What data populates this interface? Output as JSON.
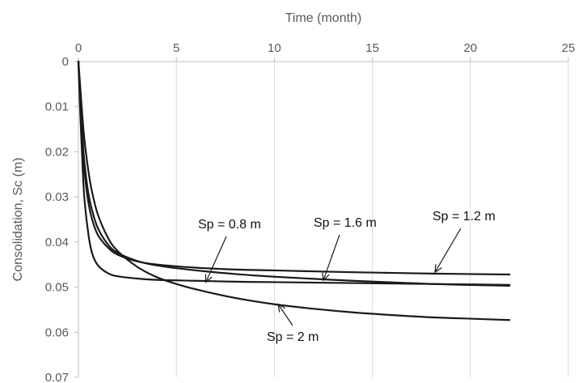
{
  "chart_data": {
    "type": "line",
    "xlabel": "Time (month)",
    "ylabel": "Consolidation, Sc (m)",
    "x_axis_position": "top",
    "y_axis_inverted": true,
    "xlim": [
      0,
      25
    ],
    "ylim": [
      0,
      0.07
    ],
    "x_ticks": [
      0,
      5,
      10,
      15,
      20,
      25
    ],
    "x_tick_labels": [
      "0",
      "5",
      "10",
      "15",
      "20",
      "25"
    ],
    "y_ticks": [
      0,
      0.01,
      0.02,
      0.03,
      0.04,
      0.05,
      0.06,
      0.07
    ],
    "y_tick_labels": [
      "0",
      "0.01",
      "0.02",
      "0.03",
      "0.04",
      "0.05",
      "0.06",
      "0.07"
    ],
    "grid": {
      "vertical": true,
      "horizontal": false
    },
    "legend": "none",
    "line_color": "#1a1a1a",
    "grid_color": "#d9d9d9",
    "series": [
      {
        "name": "Sp = 0.8 m",
        "x": [
          0,
          0.05,
          0.1,
          0.2,
          0.3,
          0.5,
          0.7,
          1.0,
          1.5,
          2,
          3,
          4,
          6,
          8,
          10,
          14,
          18,
          22
        ],
        "y": [
          0,
          0.006,
          0.012,
          0.022,
          0.03,
          0.038,
          0.0425,
          0.0452,
          0.0469,
          0.0476,
          0.0481,
          0.0484,
          0.0486,
          0.0488,
          0.0489,
          0.0491,
          0.0493,
          0.0495
        ]
      },
      {
        "name": "Sp = 1.2 m",
        "x": [
          0,
          0.05,
          0.1,
          0.2,
          0.3,
          0.5,
          0.7,
          1.0,
          1.5,
          2,
          3,
          4,
          6,
          8,
          10,
          14,
          18,
          22
        ],
        "y": [
          0,
          0.005,
          0.01,
          0.018,
          0.024,
          0.031,
          0.035,
          0.0385,
          0.0412,
          0.0428,
          0.0443,
          0.045,
          0.0457,
          0.0461,
          0.0463,
          0.0467,
          0.047,
          0.0472
        ]
      },
      {
        "name": "Sp = 1.6 m",
        "x": [
          0,
          0.05,
          0.1,
          0.2,
          0.3,
          0.5,
          0.7,
          1.0,
          1.5,
          2,
          3,
          4,
          6,
          8,
          10,
          14,
          18,
          22
        ],
        "y": [
          0,
          0.004,
          0.009,
          0.016,
          0.022,
          0.029,
          0.033,
          0.037,
          0.0405,
          0.0424,
          0.0442,
          0.0452,
          0.0463,
          0.0471,
          0.0477,
          0.0486,
          0.0493,
          0.0497
        ]
      },
      {
        "name": "Sp = 2 m",
        "x": [
          0,
          0.05,
          0.1,
          0.2,
          0.3,
          0.5,
          0.7,
          1.0,
          1.5,
          2,
          3,
          4,
          5,
          6,
          8,
          10,
          12,
          14,
          16,
          18,
          20,
          22
        ],
        "y": [
          0,
          0.003,
          0.006,
          0.012,
          0.017,
          0.024,
          0.029,
          0.034,
          0.039,
          0.042,
          0.0455,
          0.0478,
          0.0493,
          0.0505,
          0.0524,
          0.0538,
          0.0548,
          0.0556,
          0.0562,
          0.0567,
          0.057,
          0.0573
        ]
      }
    ],
    "annotations": [
      {
        "text": "Sp = 0.8 m",
        "points_to": {
          "x": 6.5,
          "y": 0.0489
        }
      },
      {
        "text": "Sp = 1.6 m",
        "points_to": {
          "x": 12.5,
          "y": 0.0485
        }
      },
      {
        "text": "Sp = 1.2 m",
        "points_to": {
          "x": 18.2,
          "y": 0.0467
        }
      },
      {
        "text": "Sp = 2 m",
        "points_to": {
          "x": 10.2,
          "y": 0.0538
        }
      }
    ]
  }
}
